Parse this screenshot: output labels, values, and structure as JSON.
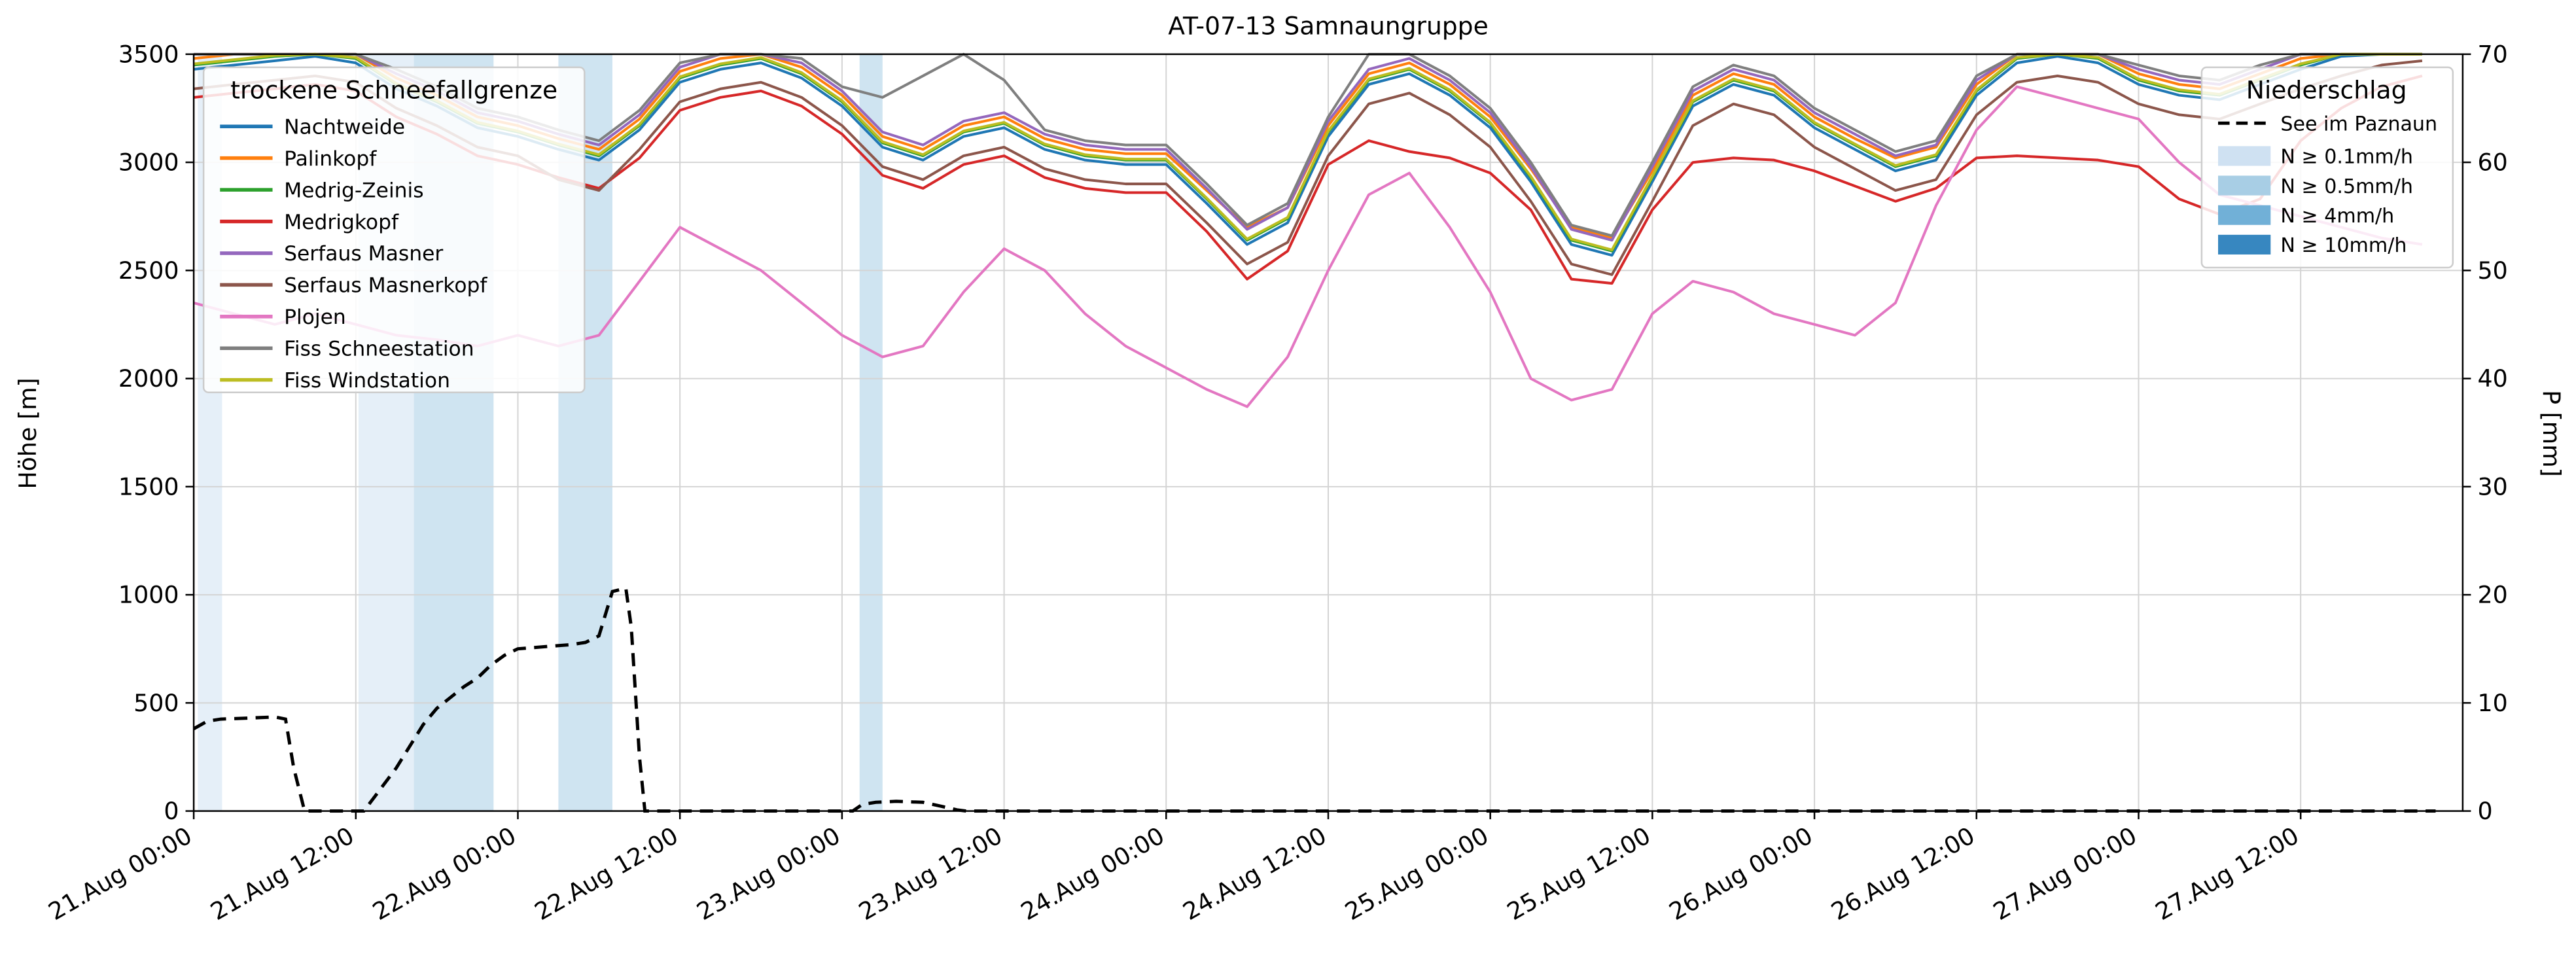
{
  "title": "AT-07-13 Samnaungruppe",
  "axes": {
    "y_left_label": "Höhe [m]",
    "y_right_label": "P [mm]",
    "y_left_ticks": [
      0,
      500,
      1000,
      1500,
      2000,
      2500,
      3000,
      3500
    ],
    "y_right_ticks": [
      0,
      10,
      20,
      30,
      40,
      50,
      60,
      70
    ],
    "x_tick_hours": [
      0,
      12,
      24,
      36,
      48,
      60,
      72,
      84,
      96,
      108,
      120,
      132,
      144,
      156
    ],
    "x_tick_labels": [
      "21.Aug 00:00",
      "21.Aug 12:00",
      "22.Aug 00:00",
      "22.Aug 12:00",
      "23.Aug 00:00",
      "23.Aug 12:00",
      "24.Aug 00:00",
      "24.Aug 12:00",
      "25.Aug 00:00",
      "25.Aug 12:00",
      "26.Aug 00:00",
      "26.Aug 12:00",
      "27.Aug 00:00",
      "27.Aug 12:00"
    ]
  },
  "legend_stations": {
    "title": "trockene Schneefallgrenze",
    "items": [
      {
        "label": "Nachtweide",
        "color": "#1f77b4"
      },
      {
        "label": "Palinkopf",
        "color": "#ff7f0e"
      },
      {
        "label": "Medrig-Zeinis",
        "color": "#2ca02c"
      },
      {
        "label": "Medrigkopf",
        "color": "#d62728"
      },
      {
        "label": "Serfaus Masner",
        "color": "#9467bd"
      },
      {
        "label": "Serfaus Masnerkopf",
        "color": "#8c564b"
      },
      {
        "label": "Plojen",
        "color": "#e377c2"
      },
      {
        "label": "Fiss Schneestation",
        "color": "#7f7f7f"
      },
      {
        "label": "Fiss Windstation",
        "color": "#bcbd22"
      }
    ]
  },
  "legend_precip": {
    "title": "Niederschlag",
    "line_item": {
      "label": "See im Paznaun",
      "color": "#000000",
      "style": "dashed"
    },
    "levels": [
      {
        "label": "N ≥ 0.1mm/h",
        "color": "#cfe1f2"
      },
      {
        "label": "N ≥ 0.5mm/h",
        "color": "#a8cee5"
      },
      {
        "label": "N ≥ 4mm/h",
        "color": "#71b0d7"
      },
      {
        "label": "N ≥ 10mm/h",
        "color": "#3787c0"
      }
    ]
  },
  "chart_data": {
    "type": "line",
    "x_start_label": "21.Aug 00:00",
    "x_unit": "hours since 21.Aug 00:00",
    "x_range": [
      0,
      168
    ],
    "y_left": {
      "label": "Höhe [m]",
      "range": [
        0,
        3500
      ]
    },
    "y_right": {
      "label": "P [mm]",
      "range": [
        0,
        70
      ]
    },
    "grid": true,
    "x_hours": [
      0,
      3,
      6,
      9,
      12,
      15,
      18,
      21,
      24,
      27,
      30,
      33,
      36,
      39,
      42,
      45,
      48,
      51,
      54,
      57,
      60,
      63,
      66,
      69,
      72,
      75,
      78,
      81,
      84,
      87,
      90,
      93,
      96,
      99,
      102,
      105,
      108,
      111,
      114,
      117,
      120,
      123,
      126,
      129,
      132,
      135,
      138,
      141,
      144,
      147,
      150,
      153,
      156,
      159,
      162,
      165
    ],
    "series": [
      {
        "name": "Nachtweide",
        "color": "#1f77b4",
        "axis": "left",
        "values": [
          3430,
          3450,
          3470,
          3490,
          3460,
          3340,
          3260,
          3160,
          3120,
          3060,
          3010,
          3150,
          3370,
          3430,
          3460,
          3390,
          3260,
          3070,
          3010,
          3120,
          3160,
          3060,
          3010,
          2990,
          2990,
          2810,
          2620,
          2720,
          3120,
          3360,
          3410,
          3310,
          3160,
          2910,
          2620,
          2570,
          2910,
          3260,
          3360,
          3310,
          3160,
          3060,
          2960,
          3010,
          3310,
          3460,
          3490,
          3460,
          3360,
          3310,
          3290,
          3360,
          3430,
          3490,
          3500,
          3500
        ]
      },
      {
        "name": "Palinkopf",
        "color": "#ff7f0e",
        "axis": "left",
        "values": [
          3480,
          3500,
          3500,
          3500,
          3500,
          3390,
          3310,
          3210,
          3170,
          3110,
          3060,
          3200,
          3420,
          3480,
          3500,
          3440,
          3310,
          3120,
          3060,
          3170,
          3210,
          3110,
          3060,
          3040,
          3040,
          2870,
          2700,
          2790,
          3170,
          3410,
          3460,
          3360,
          3210,
          2970,
          2700,
          2650,
          2960,
          3310,
          3410,
          3360,
          3210,
          3110,
          3020,
          3070,
          3360,
          3500,
          3500,
          3500,
          3410,
          3360,
          3340,
          3410,
          3480,
          3500,
          3500,
          3500
        ]
      },
      {
        "name": "Medrig-Zeinis",
        "color": "#2ca02c",
        "axis": "left",
        "values": [
          3450,
          3470,
          3490,
          3500,
          3480,
          3360,
          3280,
          3180,
          3140,
          3080,
          3030,
          3170,
          3390,
          3450,
          3480,
          3410,
          3280,
          3090,
          3030,
          3140,
          3180,
          3080,
          3030,
          3010,
          3010,
          2830,
          2640,
          2740,
          3140,
          3380,
          3430,
          3330,
          3180,
          2930,
          2640,
          2590,
          2930,
          3280,
          3380,
          3330,
          3180,
          3080,
          2980,
          3030,
          3330,
          3480,
          3500,
          3480,
          3380,
          3330,
          3310,
          3380,
          3450,
          3500,
          3500,
          3500
        ]
      },
      {
        "name": "Medrigkopf",
        "color": "#d62728",
        "axis": "left",
        "values": [
          3300,
          3320,
          3340,
          3360,
          3330,
          3210,
          3130,
          3030,
          2990,
          2930,
          2880,
          3020,
          3240,
          3300,
          3330,
          3260,
          3130,
          2940,
          2880,
          2990,
          3030,
          2930,
          2880,
          2860,
          2860,
          2680,
          2460,
          2590,
          2990,
          3100,
          3050,
          3020,
          2950,
          2780,
          2460,
          2440,
          2780,
          3000,
          3020,
          3010,
          2960,
          2890,
          2820,
          2880,
          3020,
          3030,
          3020,
          3010,
          2980,
          2830,
          2760,
          2830,
          3100,
          3250,
          3350,
          3400
        ]
      },
      {
        "name": "Serfaus Masner",
        "color": "#9467bd",
        "axis": "left",
        "values": [
          3500,
          3500,
          3500,
          3500,
          3500,
          3410,
          3330,
          3230,
          3190,
          3130,
          3080,
          3220,
          3440,
          3500,
          3500,
          3460,
          3330,
          3140,
          3080,
          3190,
          3230,
          3130,
          3080,
          3060,
          3060,
          2880,
          2690,
          2790,
          3190,
          3430,
          3480,
          3380,
          3230,
          2980,
          2690,
          2640,
          2980,
          3330,
          3430,
          3380,
          3230,
          3130,
          3030,
          3080,
          3380,
          3500,
          3500,
          3500,
          3430,
          3380,
          3360,
          3430,
          3500,
          3500,
          3500,
          3500
        ]
      },
      {
        "name": "Serfaus Masnerkopf",
        "color": "#8c564b",
        "axis": "left",
        "values": [
          3340,
          3360,
          3380,
          3400,
          3370,
          3250,
          3170,
          3070,
          3030,
          2920,
          2870,
          3060,
          3280,
          3340,
          3370,
          3300,
          3170,
          2980,
          2920,
          3030,
          3070,
          2970,
          2920,
          2900,
          2900,
          2720,
          2530,
          2630,
          3030,
          3270,
          3320,
          3220,
          3070,
          2820,
          2530,
          2480,
          2820,
          3170,
          3270,
          3220,
          3070,
          2970,
          2870,
          2920,
          3220,
          3370,
          3400,
          3370,
          3270,
          3220,
          3200,
          3270,
          3340,
          3400,
          3450,
          3470
        ]
      },
      {
        "name": "Plojen",
        "color": "#e377c2",
        "axis": "left",
        "values": [
          2350,
          2300,
          2250,
          2300,
          2250,
          2200,
          2180,
          2150,
          2200,
          2150,
          2200,
          2450,
          2700,
          2600,
          2500,
          2350,
          2200,
          2100,
          2150,
          2400,
          2600,
          2500,
          2300,
          2150,
          2050,
          1950,
          1870,
          2100,
          2500,
          2850,
          2950,
          2700,
          2400,
          2000,
          1900,
          1950,
          2300,
          2450,
          2400,
          2300,
          2250,
          2200,
          2350,
          2800,
          3150,
          3350,
          3300,
          3250,
          3200,
          3000,
          2850,
          2800,
          2750,
          2700,
          2650,
          2620
        ]
      },
      {
        "name": "Fiss Schneestation",
        "color": "#7f7f7f",
        "axis": "left",
        "values": [
          3500,
          3500,
          3500,
          3500,
          3500,
          3430,
          3350,
          3250,
          3210,
          3150,
          3100,
          3240,
          3460,
          3500,
          3500,
          3480,
          3350,
          3300,
          3400,
          3500,
          3380,
          3150,
          3100,
          3080,
          3080,
          2900,
          2710,
          2810,
          3210,
          3500,
          3500,
          3400,
          3250,
          3000,
          2710,
          2660,
          3000,
          3350,
          3450,
          3400,
          3250,
          3150,
          3050,
          3100,
          3400,
          3500,
          3500,
          3500,
          3450,
          3400,
          3380,
          3450,
          3500,
          3500,
          3500,
          3500
        ]
      },
      {
        "name": "Fiss Windstation",
        "color": "#bcbd22",
        "axis": "left",
        "values": [
          3455,
          3475,
          3495,
          3500,
          3485,
          3365,
          3285,
          3185,
          3145,
          3085,
          3035,
          3175,
          3395,
          3455,
          3485,
          3415,
          3285,
          3095,
          3035,
          3145,
          3185,
          3085,
          3035,
          3015,
          3015,
          2835,
          2645,
          2745,
          3145,
          3385,
          3435,
          3335,
          3185,
          2935,
          2645,
          2595,
          2935,
          3285,
          3385,
          3335,
          3185,
          3085,
          2985,
          3035,
          3335,
          3485,
          3500,
          3485,
          3385,
          3335,
          3315,
          3385,
          3455,
          3500,
          3500,
          3500
        ]
      }
    ],
    "see_line": {
      "name": "See im Paznaun",
      "color": "#000000",
      "axis": "right",
      "style": "dashed",
      "points": [
        [
          0,
          7.6
        ],
        [
          1,
          8.3
        ],
        [
          2,
          8.5
        ],
        [
          4,
          8.6
        ],
        [
          6,
          8.7
        ],
        [
          6.8,
          8.5
        ],
        [
          7.4,
          4.0
        ],
        [
          8.2,
          0
        ],
        [
          12.6,
          0
        ],
        [
          13.5,
          1.5
        ],
        [
          15,
          4.0
        ],
        [
          16,
          6.0
        ],
        [
          17,
          8.0
        ],
        [
          18,
          9.5
        ],
        [
          19,
          10.5
        ],
        [
          20,
          11.5
        ],
        [
          21,
          12.3
        ],
        [
          22,
          13.5
        ],
        [
          23,
          14.4
        ],
        [
          24,
          15.0
        ],
        [
          26,
          15.2
        ],
        [
          28,
          15.4
        ],
        [
          29,
          15.6
        ],
        [
          30,
          16.2
        ],
        [
          31,
          20.3
        ],
        [
          32,
          20.6
        ],
        [
          32.4,
          17.0
        ],
        [
          33,
          5.0
        ],
        [
          33.4,
          0
        ],
        [
          48.8,
          0
        ],
        [
          49.5,
          0.6
        ],
        [
          50.5,
          0.8
        ],
        [
          52,
          0.9
        ],
        [
          54,
          0.8
        ],
        [
          55.5,
          0.4
        ],
        [
          56.5,
          0.1
        ],
        [
          57.2,
          0
        ],
        [
          166,
          0
        ]
      ]
    },
    "precip_bands": [
      {
        "start_hour": 0.3,
        "end_hour": 2.1,
        "level": "N ≥ 0.1mm/h",
        "color": "#cfe1f2"
      },
      {
        "start_hour": 12.2,
        "end_hour": 16.3,
        "level": "N ≥ 0.1mm/h",
        "color": "#cfe1f2"
      },
      {
        "start_hour": 16.3,
        "end_hour": 22.2,
        "level": "N ≥ 0.5mm/h",
        "color": "#a8cee5"
      },
      {
        "start_hour": 27.0,
        "end_hour": 31.0,
        "level": "N ≥ 0.5mm/h",
        "color": "#a8cee5"
      },
      {
        "start_hour": 49.3,
        "end_hour": 51.0,
        "level": "N ≥ 0.5mm/h",
        "color": "#a8cee5"
      }
    ]
  }
}
